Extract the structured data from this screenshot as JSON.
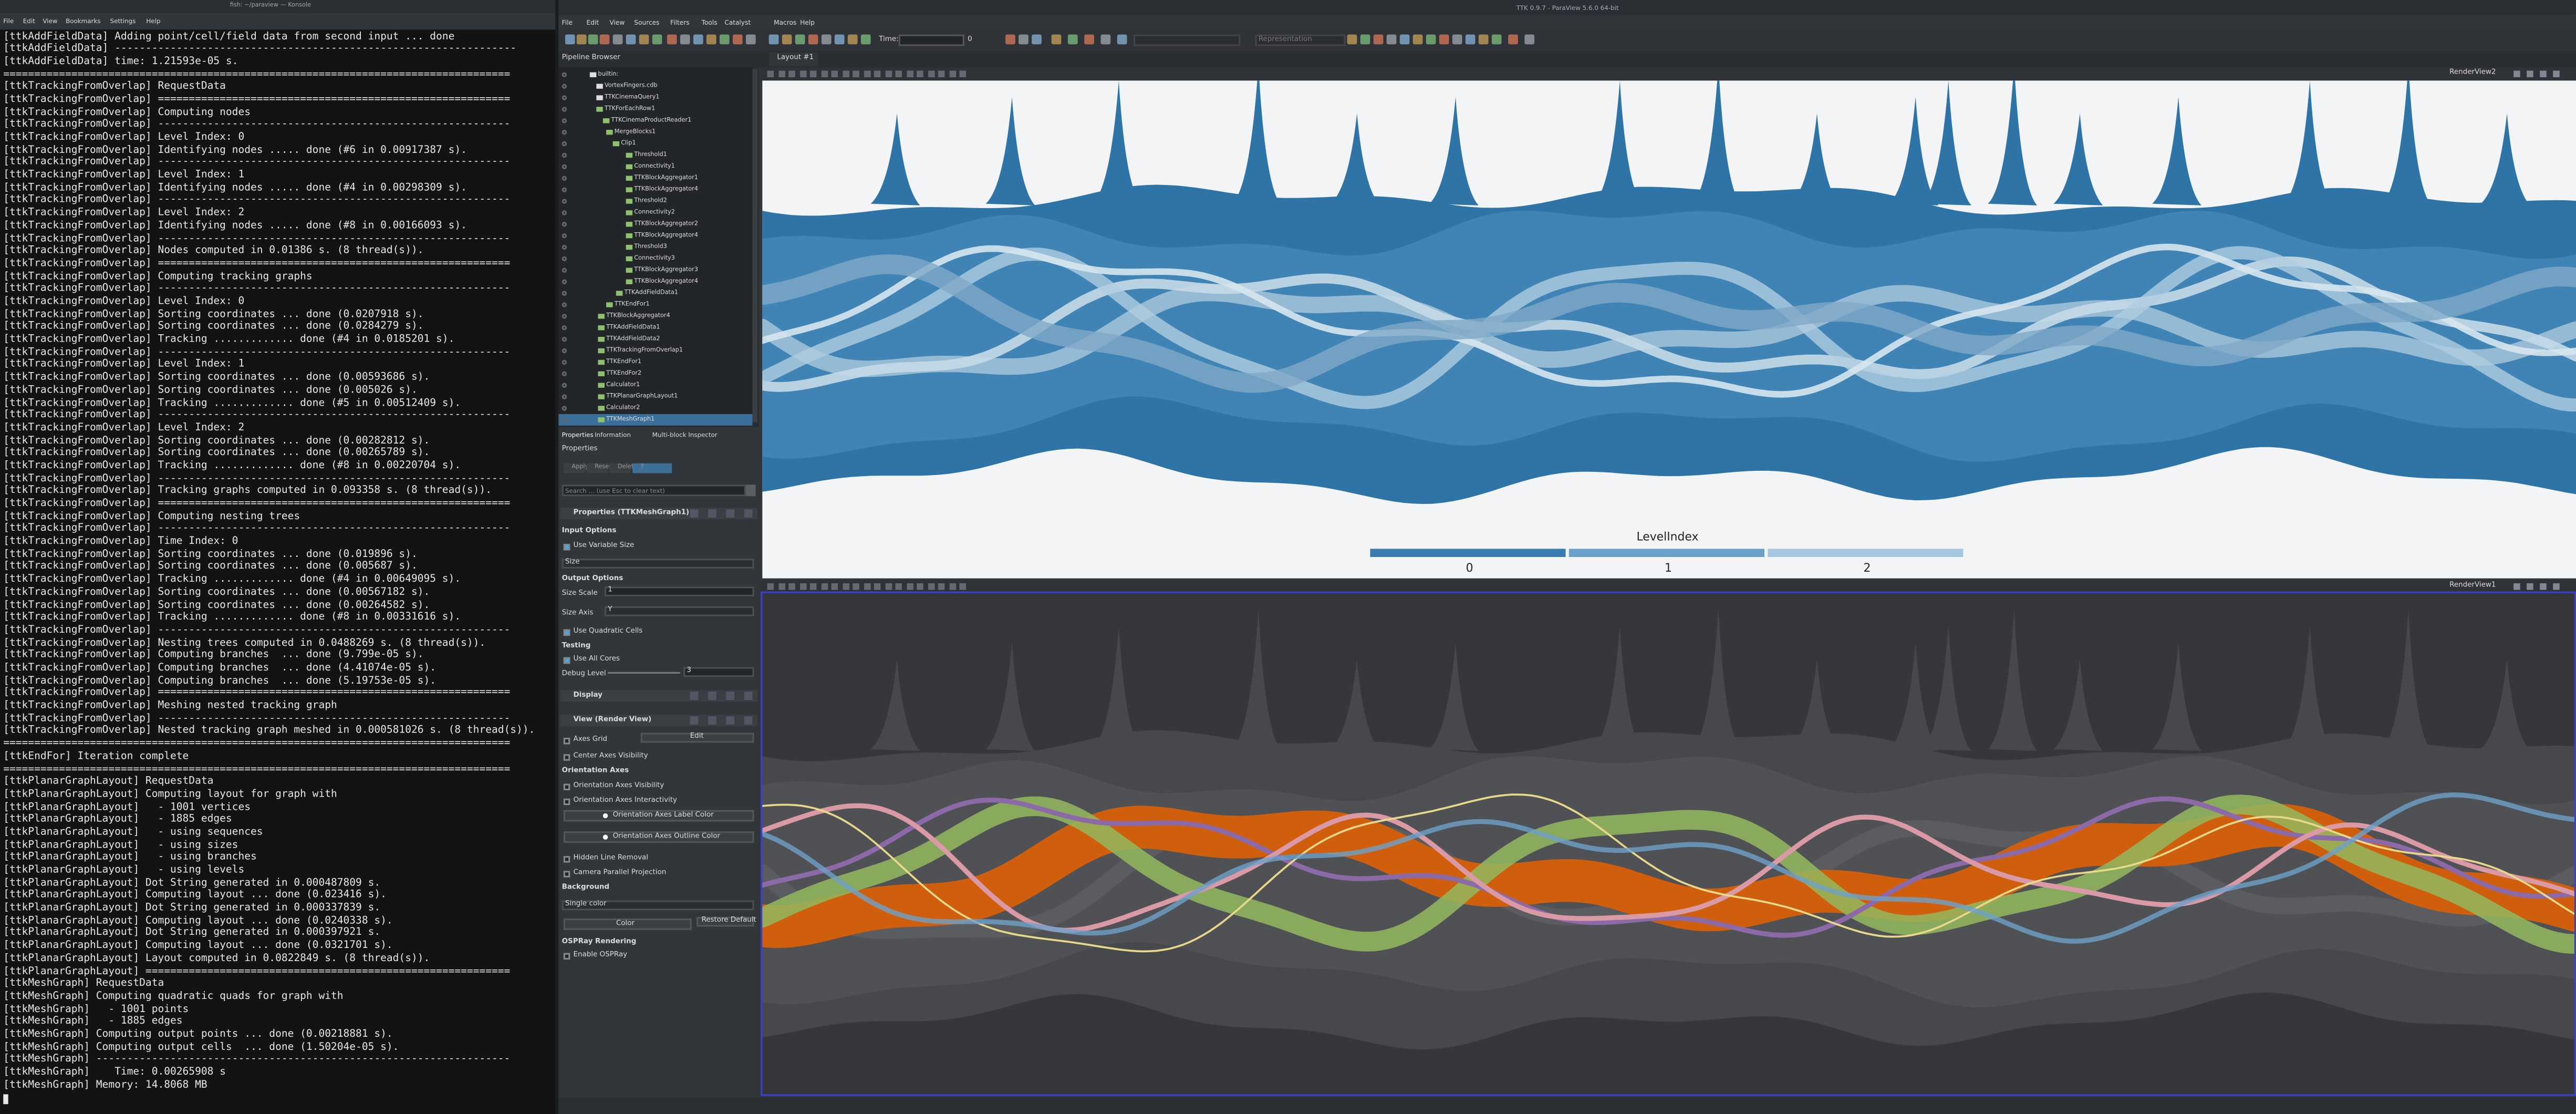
{
  "terminal": {
    "title": "fish: ~/paraview — Konsole",
    "menu": [
      "File",
      "Edit",
      "View",
      "Bookmarks",
      "Settings",
      "Help"
    ],
    "lines": [
      "[ttkAddFieldData] Adding point/cell/field data from second input ... done",
      "[ttkAddFieldData] -----------------------------------------------------------------",
      "[ttkAddFieldData] time: 1.21593e-05 s.",
      "==================================================================================",
      "[ttkTrackingFromOverlap] RequestData",
      "[ttkTrackingFromOverlap] =========================================================",
      "[ttkTrackingFromOverlap] Computing nodes",
      "[ttkTrackingFromOverlap] ---------------------------------------------------------",
      "[ttkTrackingFromOverlap] Level Index: 0",
      "[ttkTrackingFromOverlap] Identifying nodes ..... done (#6 in 0.00917387 s).",
      "[ttkTrackingFromOverlap] ---------------------------------------------------------",
      "[ttkTrackingFromOverlap] Level Index: 1",
      "[ttkTrackingFromOverlap] Identifying nodes ..... done (#4 in 0.00298309 s).",
      "[ttkTrackingFromOverlap] ---------------------------------------------------------",
      "[ttkTrackingFromOverlap] Level Index: 2",
      "[ttkTrackingFromOverlap] Identifying nodes ..... done (#8 in 0.00166093 s).",
      "[ttkTrackingFromOverlap] ---------------------------------------------------------",
      "[ttkTrackingFromOverlap] Nodes computed in 0.01386 s. (8 thread(s)).",
      "[ttkTrackingFromOverlap] =========================================================",
      "[ttkTrackingFromOverlap] Computing tracking graphs",
      "[ttkTrackingFromOverlap] ---------------------------------------------------------",
      "[ttkTrackingFromOverlap] Level Index: 0",
      "[ttkTrackingFromOverlap] Sorting coordinates ... done (0.0207918 s).",
      "[ttkTrackingFromOverlap] Sorting coordinates ... done (0.0284279 s).",
      "[ttkTrackingFromOverlap] Tracking ............. done (#4 in 0.0185201 s).",
      "[ttkTrackingFromOverlap] ---------------------------------------------------------",
      "[ttkTrackingFromOverlap] Level Index: 1",
      "[ttkTrackingFromOverlap] Sorting coordinates ... done (0.00593686 s).",
      "[ttkTrackingFromOverlap] Sorting coordinates ... done (0.005026 s).",
      "[ttkTrackingFromOverlap] Tracking ............. done (#5 in 0.00512409 s).",
      "[ttkTrackingFromOverlap] ---------------------------------------------------------",
      "[ttkTrackingFromOverlap] Level Index: 2",
      "[ttkTrackingFromOverlap] Sorting coordinates ... done (0.00282812 s).",
      "[ttkTrackingFromOverlap] Sorting coordinates ... done (0.00265789 s).",
      "[ttkTrackingFromOverlap] Tracking ............. done (#8 in 0.00220704 s).",
      "[ttkTrackingFromOverlap] ---------------------------------------------------------",
      "[ttkTrackingFromOverlap] Tracking graphs computed in 0.093358 s. (8 thread(s)).",
      "[ttkTrackingFromOverlap] =========================================================",
      "[ttkTrackingFromOverlap] Computing nesting trees",
      "[ttkTrackingFromOverlap] ---------------------------------------------------------",
      "[ttkTrackingFromOverlap] Time Index: 0",
      "[ttkTrackingFromOverlap] Sorting coordinates ... done (0.019896 s).",
      "[ttkTrackingFromOverlap] Sorting coordinates ... done (0.005687 s).",
      "[ttkTrackingFromOverlap] Tracking ............. done (#4 in 0.00649095 s).",
      "[ttkTrackingFromOverlap] Sorting coordinates ... done (0.00567182 s).",
      "[ttkTrackingFromOverlap] Sorting coordinates ... done (0.00264582 s).",
      "[ttkTrackingFromOverlap] Tracking ............. done (#8 in 0.00331616 s).",
      "[ttkTrackingFromOverlap] ---------------------------------------------------------",
      "[ttkTrackingFromOverlap] Nesting trees computed in 0.0488269 s. (8 thread(s)).",
      "[ttkTrackingFromOverlap] Computing branches  ... done (9.799e-05 s).",
      "[ttkTrackingFromOverlap] Computing branches  ... done (4.41074e-05 s).",
      "[ttkTrackingFromOverlap] Computing branches  ... done (5.19753e-05 s).",
      "[ttkTrackingFromOverlap] =========================================================",
      "[ttkTrackingFromOverlap] Meshing nested tracking graph",
      "[ttkTrackingFromOverlap] ---------------------------------------------------------",
      "[ttkTrackingFromOverlap] Nested tracking graph meshed in 0.000581026 s. (8 thread(s)).",
      "==================================================================================",
      "[ttkEndFor] Iteration complete",
      "==================================================================================",
      "[ttkPlanarGraphLayout] RequestData",
      "[ttkPlanarGraphLayout] Computing layout for graph with",
      "[ttkPlanarGraphLayout]   - 1001 vertices",
      "[ttkPlanarGraphLayout]   - 1885 edges",
      "[ttkPlanarGraphLayout]   - using sequences",
      "[ttkPlanarGraphLayout]   - using sizes",
      "[ttkPlanarGraphLayout]   - using branches",
      "[ttkPlanarGraphLayout]   - using levels",
      "[ttkPlanarGraphLayout] Dot String generated in 0.000487809 s.",
      "[ttkPlanarGraphLayout] Computing layout ... done (0.023416 s).",
      "[ttkPlanarGraphLayout] Dot String generated in 0.000337839 s.",
      "[ttkPlanarGraphLayout] Computing layout ... done (0.0240338 s).",
      "[ttkPlanarGraphLayout] Dot String generated in 0.000397921 s.",
      "[ttkPlanarGraphLayout] Computing layout ... done (0.0321701 s).",
      "[ttkPlanarGraphLayout] Layout computed in 0.0822849 s. (8 thread(s)).",
      "[ttkPlanarGraphLayout] ===========================================================",
      "[ttkMeshGraph] RequestData",
      "[ttkMeshGraph] Computing quadratic quads for graph with",
      "[ttkMeshGraph]   - 1001 points",
      "[ttkMeshGraph]   - 1885 edges",
      "[ttkMeshGraph] Computing output points ... done (0.00218881 s).",
      "[ttkMeshGraph] Computing output cells  ... done (1.50204e-05 s).",
      "[ttkMeshGraph] -------------------------------------------------------------------",
      "[ttkMeshGraph]    Time: 0.00265908 s",
      "[ttkMeshGraph] Memory: 14.8068 MB"
    ]
  },
  "paraview": {
    "title": "TTK 0.9.7 - ParaView 5.6.0 64-bit",
    "menu": [
      "File",
      "Edit",
      "View",
      "Sources",
      "Filters",
      "Tools",
      "Catalyst",
      "Macros",
      "Help"
    ],
    "time_label": "Time:",
    "time_value": "0",
    "representation": "Representation",
    "layout_tab": "Layout #1",
    "pipeline_browser": {
      "title": "Pipeline Browser",
      "items": [
        "builtin:",
        "VortexFingers.cdb",
        "TTKCinemaQuery1",
        "TTKForEachRow1",
        "TTKCinemaProductReader1",
        "MergeBlocks1",
        "Clip1",
        "Threshold1",
        "Connectivity1",
        "TTKBlockAggregator1",
        "TTKBlockAggregator4",
        "Threshold2",
        "Connectivity2",
        "TTKBlockAggregator2",
        "TTKBlockAggregator4",
        "Threshold3",
        "Connectivity3",
        "TTKBlockAggregator3",
        "TTKBlockAggregator4",
        "TTKAddFieldData1",
        "TTKEndFor1",
        "TTKBlockAggregator4",
        "TTKAddFieldData1",
        "TTKAddFieldData2",
        "TTKTrackingFromOverlap1",
        "TTKEndFor1",
        "TTKEndFor2",
        "Calculator1",
        "TTKPlanarGraphLayout1",
        "Calculator2",
        "TTKMeshGraph1"
      ]
    },
    "tabs": [
      "Properties",
      "Information",
      "Multi-block Inspector"
    ],
    "properties": {
      "title": "Properties",
      "buttons": [
        "Apply",
        "Reset",
        "Delete",
        "?"
      ],
      "search": "Search ... (use Esc to clear text)",
      "rows": [
        "Properties (TTKMeshGraph1)",
        "Input Options",
        "Use Variable Size",
        "Size",
        "Output Options",
        "Size Scale",
        "Size Axis",
        "Use Quadratic Cells",
        "Testing",
        "Use All Cores",
        "Debug Level",
        "Display",
        "View (Render View)",
        "Axes Grid",
        "Center Axes Visibility",
        "Orientation Axes",
        "Orientation Axes Visibility",
        "Orientation Axes Interactivity",
        "Orientation Axes Label Color",
        "Orientation Axes Outline Color",
        "Hidden Line Removal",
        "Camera Parallel Projection",
        "Background",
        "Single color",
        "Color",
        "OSPRay Rendering",
        "Enable OSPRay"
      ],
      "size_scale_value": "1",
      "size_axis_value": "Y",
      "debug_level_value": "3",
      "axes_grid_edit": "Edit",
      "restore_default": "Restore Default"
    },
    "views": {
      "top": {
        "name": "RenderView2",
        "legend": {
          "title": "LevelIndex",
          "labels": [
            0,
            1,
            2
          ]
        }
      },
      "bottom": {
        "name": "RenderView1"
      }
    }
  }
}
